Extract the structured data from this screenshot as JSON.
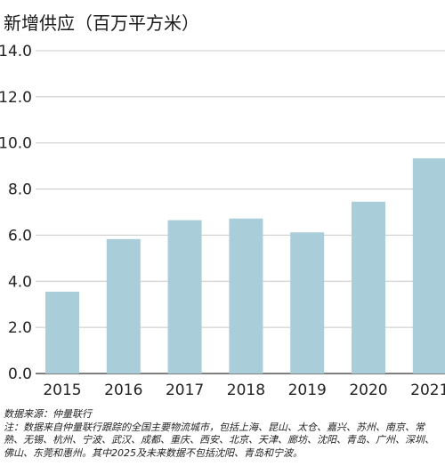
{
  "chart_data": {
    "type": "bar",
    "title": "新增供应（百万平方米）",
    "categories": [
      "2015",
      "2016",
      "2017",
      "2018",
      "2019",
      "2020",
      "2021"
    ],
    "values": [
      3.55,
      5.83,
      6.65,
      6.72,
      6.12,
      7.45,
      9.33
    ],
    "y_ticks": [
      "0.0",
      "2.0",
      "4.0",
      "6.0",
      "8.0",
      "10.0",
      "12.0",
      "14.0"
    ],
    "ylim": [
      0,
      14
    ],
    "bar_color": "#a9cdd9",
    "grid": true,
    "legend": "none"
  },
  "footer": {
    "source": "数据来源：仲量联行",
    "note": "注：数据来自仲量联行跟踪的全国主要物流城市，包括上海、昆山、太仓、嘉兴、苏州、南京、常熟、无锡、杭州、宁波、武汉、成都、重庆、西安、北京、天津、廊坊、沈阳、青岛、广州、深圳、佛山、东莞和惠州。其中2025及未来数据不包括沈阳、青岛和宁波。"
  }
}
